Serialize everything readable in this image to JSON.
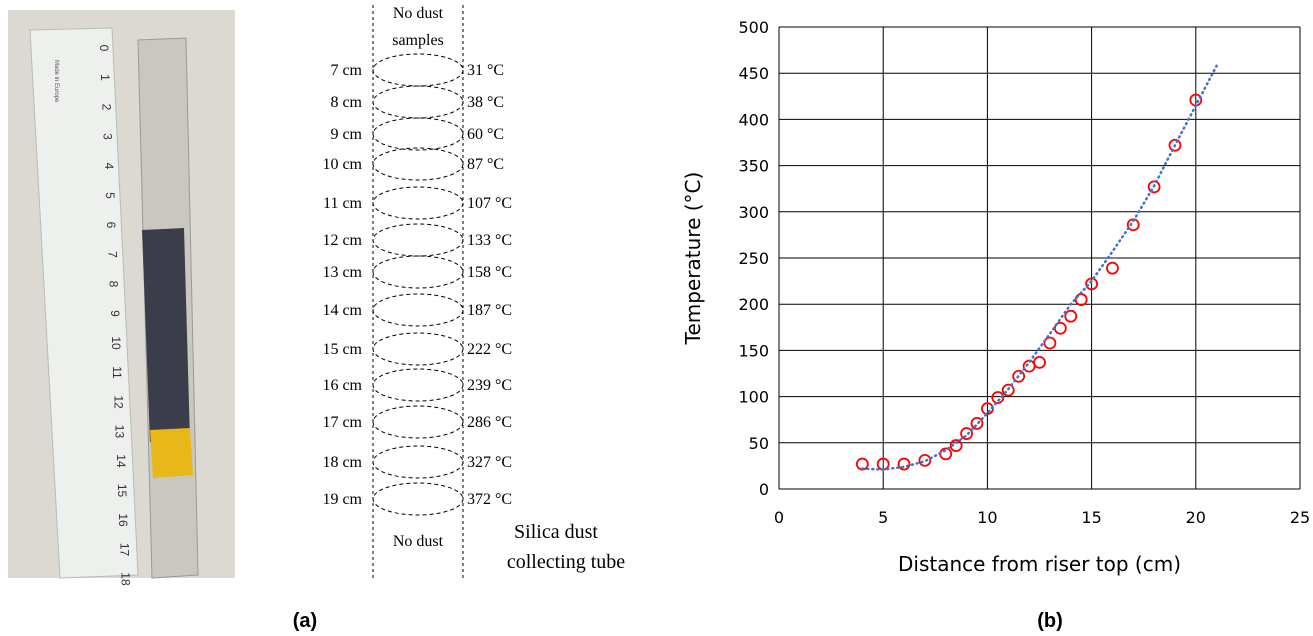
{
  "photo": {
    "ruler_labels": [
      "0",
      "1",
      "2",
      "3",
      "4",
      "5",
      "6",
      "7",
      "8",
      "9",
      "10",
      "11",
      "12",
      "13",
      "14",
      "15",
      "16",
      "17",
      "18"
    ],
    "ruler_brand": "Made in Europe"
  },
  "panel_labels": [
    "(a)",
    "(b)"
  ],
  "diagram": {
    "top_label": [
      "No dust",
      "samples"
    ],
    "bottom_label": "No dust",
    "tube_label": [
      "Silica dust",
      "collecting tube"
    ],
    "distances": [
      "7 cm",
      "8 cm",
      "9 cm",
      "10 cm",
      "11 cm",
      "12 cm",
      "13 cm",
      "14 cm",
      "15 cm",
      "16 cm",
      "17 cm",
      "18 cm",
      "19 cm"
    ],
    "temperatures": [
      "31 °C",
      "38 °C",
      "60 °C",
      "87 °C",
      "107 °C",
      "133 °C",
      "158 °C",
      "187 °C",
      "222 °C",
      "239 °C",
      "286 °C",
      "327 °C",
      "372 °C"
    ]
  },
  "chart_data": {
    "type": "scatter",
    "x_label": "Distance from riser top (cm)",
    "y_label": "Temperature  (°C)",
    "xlim": [
      0,
      25
    ],
    "xticks": [
      0,
      5,
      10,
      15,
      20,
      25
    ],
    "ylim": [
      0,
      500
    ],
    "yticks": [
      0,
      50,
      100,
      150,
      200,
      250,
      300,
      350,
      400,
      450,
      500
    ],
    "grid": true,
    "series": [
      {
        "color": "#ff0000",
        "marker": "open-circle",
        "x": [
          4,
          5,
          6,
          7,
          8,
          8.5,
          9,
          9.5,
          10,
          10.5,
          11,
          11.5,
          12,
          12.5,
          13,
          13.5,
          14,
          14.5,
          15,
          16,
          17,
          18,
          19,
          20
        ],
        "values": [
          27,
          27,
          27,
          31,
          38,
          47,
          60,
          71,
          87,
          99,
          107,
          122,
          133,
          137,
          158,
          174,
          187,
          205,
          222,
          239,
          286,
          327,
          372,
          421
        ]
      },
      {
        "color": "#4472c4",
        "marker": "dotted-line",
        "x": [
          4,
          5,
          6,
          7,
          8,
          9,
          10,
          11,
          12,
          13,
          14,
          15,
          16,
          17,
          18,
          19,
          20,
          21
        ],
        "values": [
          22,
          21,
          24,
          30,
          42,
          58,
          82,
          108,
          137,
          168,
          200,
          225,
          257,
          290,
          328,
          372,
          415,
          458
        ]
      }
    ]
  }
}
